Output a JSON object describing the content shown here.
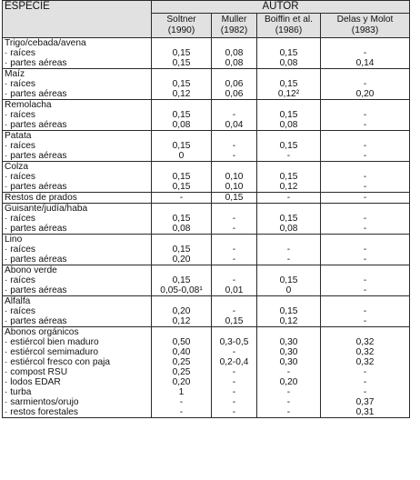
{
  "header": {
    "species_label": "ESPECIE",
    "author_label": "AUTOR",
    "authors": [
      {
        "name": "Soltner",
        "year": "(1990)"
      },
      {
        "name": "Muller",
        "year": "(1982)"
      },
      {
        "name": "Boiffin et al.",
        "year": "(1986)"
      },
      {
        "name": "Delas y Molot",
        "year": "(1983)"
      }
    ]
  },
  "rows": [
    {
      "label": "Trigo/cebada/avena",
      "values": [
        "",
        "",
        "",
        ""
      ],
      "group_start": true
    },
    {
      "label": "· raíces",
      "values": [
        "0,15",
        "0,08",
        "0,15",
        "-"
      ]
    },
    {
      "label": "· partes aéreas",
      "values": [
        "0,15",
        "0,08",
        "0,08",
        "0,14"
      ]
    },
    {
      "label": "Maíz",
      "values": [
        "",
        "",
        "",
        ""
      ],
      "group_start": true
    },
    {
      "label": "· raíces",
      "values": [
        "0,15",
        "0,06",
        "0,15",
        "-"
      ]
    },
    {
      "label": "· partes aéreas",
      "values": [
        "0,12",
        "0,06",
        "0,12²",
        "0,20"
      ]
    },
    {
      "label": "Remolacha",
      "values": [
        "",
        "",
        "",
        ""
      ],
      "group_start": true
    },
    {
      "label": "· raíces",
      "values": [
        "0,15",
        "-",
        "0,15",
        "-"
      ]
    },
    {
      "label": "· partes aéreas",
      "values": [
        "0,08",
        "0,04",
        "0,08",
        "-"
      ]
    },
    {
      "label": "Patata",
      "values": [
        "",
        "",
        "",
        ""
      ],
      "group_start": true
    },
    {
      "label": "· raíces",
      "values": [
        "0,15",
        "-",
        "0,15",
        "-"
      ]
    },
    {
      "label": "· partes aéreas",
      "values": [
        "0",
        "-",
        "-",
        "-"
      ]
    },
    {
      "label": "Colza",
      "values": [
        "",
        "",
        "",
        ""
      ],
      "group_start": true
    },
    {
      "label": "· raíces",
      "values": [
        "0,15",
        "0,10",
        "0,15",
        "-"
      ]
    },
    {
      "label": "· partes aéreas",
      "values": [
        "0,15",
        "0,10",
        "0,12",
        "-"
      ]
    },
    {
      "label": "Restos de prados",
      "values": [
        "-",
        "0,15",
        "-",
        "-"
      ],
      "group_start": true
    },
    {
      "label": "Guisante/judía/haba",
      "values": [
        "",
        "",
        "",
        ""
      ],
      "group_start": true
    },
    {
      "label": "· raíces",
      "values": [
        "0,15",
        "-",
        "0,15",
        "-"
      ]
    },
    {
      "label": "· partes aéreas",
      "values": [
        "0,08",
        "-",
        "0,08",
        "-"
      ]
    },
    {
      "label": "Lino",
      "values": [
        "",
        "",
        "",
        ""
      ],
      "group_start": true
    },
    {
      "label": "· raíces",
      "values": [
        "0,15",
        "-",
        "-",
        "-"
      ]
    },
    {
      "label": "· partes aéreas",
      "values": [
        "0,20",
        "-",
        "-",
        "-"
      ]
    },
    {
      "label": "Abono verde",
      "values": [
        "",
        "",
        "",
        ""
      ],
      "group_start": true
    },
    {
      "label": "· raíces",
      "values": [
        "0,15",
        "-",
        "0,15",
        "-"
      ]
    },
    {
      "label": "· partes aéreas",
      "values": [
        "0,05-0,08¹",
        "0,01",
        "0",
        "-"
      ]
    },
    {
      "label": "Alfalfa",
      "values": [
        "",
        "",
        "",
        ""
      ],
      "group_start": true
    },
    {
      "label": "· raíces",
      "values": [
        "0,20",
        "-",
        "0,15",
        "-"
      ]
    },
    {
      "label": "· partes aéreas",
      "values": [
        "0,12",
        "0,15",
        "0,12",
        "-"
      ]
    },
    {
      "label": "Abonos orgánicos",
      "values": [
        "",
        "",
        "",
        ""
      ],
      "group_start": true
    },
    {
      "label": "· estiércol bien maduro",
      "values": [
        "0,50",
        "0,3-0,5",
        "0,30",
        "0,32"
      ]
    },
    {
      "label": "· estiércol semimaduro",
      "values": [
        "0,40",
        "-",
        "0,30",
        "0,32"
      ]
    },
    {
      "label": "· estiércol fresco con paja",
      "values": [
        "0,25",
        "0,2-0,4",
        "0,30",
        "0,32"
      ]
    },
    {
      "label": "· compost RSU",
      "values": [
        "0,25",
        "-",
        "-",
        "-"
      ]
    },
    {
      "label": "· lodos EDAR",
      "values": [
        "0,20",
        "-",
        "0,20",
        "-"
      ]
    },
    {
      "label": "· turba",
      "values": [
        "1",
        "-",
        "-",
        "-"
      ]
    },
    {
      "label": "· sarmientos/orujo",
      "values": [
        "-",
        "-",
        "-",
        "0,37"
      ]
    },
    {
      "label": "· restos forestales",
      "values": [
        "-",
        "-",
        "-",
        "0,31"
      ]
    }
  ]
}
